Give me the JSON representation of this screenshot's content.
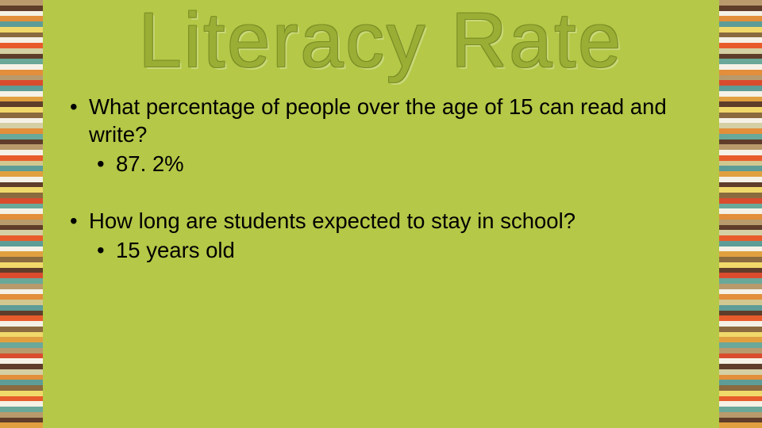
{
  "title": "Literacy Rate",
  "question1": "What percentage of people over the age of 15 can read and write?",
  "answer1": "87. 2%",
  "question2": "How long are students expected to stay in school?",
  "answer2": "15 years old",
  "colors": {
    "panel_bg": "#b5c847",
    "title_fill": "#9aae35",
    "title_outline": "#7a8d25",
    "title_highlight": "#c9d878",
    "body_text": "#000000"
  },
  "typography": {
    "title_fontsize_pt": 73,
    "body_fontsize_pt": 21,
    "font_family": "Arial"
  },
  "stripes": [
    "#b89a6c",
    "#5f3d2a",
    "#f5f1e6",
    "#e28e3a",
    "#5d9c97",
    "#f0d96a",
    "#8a6a3e",
    "#f5f1e6",
    "#e85c2b",
    "#d5cfa4",
    "#5f3d2a",
    "#6aa89a",
    "#f5f1e6",
    "#e28e3a",
    "#b89a6c",
    "#d94c2e",
    "#5d9c97",
    "#f5f1e6",
    "#e0a040",
    "#5f3d2a",
    "#f0d96a",
    "#8a6a3e",
    "#f5f1e6",
    "#d5cfa4",
    "#e28e3a",
    "#6aa89a",
    "#5f3d2a",
    "#b89a6c",
    "#f5f1e6",
    "#e85c2b",
    "#d0c890",
    "#5d9c97",
    "#e0a040",
    "#f5f1e6",
    "#5f3d2a",
    "#f0d96a",
    "#8a6a3e",
    "#d94c2e",
    "#6aa89a",
    "#f5f1e6",
    "#e28e3a",
    "#b89a6c",
    "#5f3d2a",
    "#d5cfa4",
    "#e85c2b",
    "#5d9c97",
    "#f5f1e6",
    "#e0a040",
    "#8a6a3e",
    "#f0d96a",
    "#5f3d2a",
    "#d94c2e",
    "#6aa89a",
    "#b89a6c",
    "#f5f1e6",
    "#e28e3a",
    "#d0c890",
    "#5d9c97",
    "#5f3d2a",
    "#e85c2b",
    "#f5f1e6",
    "#8a6a3e",
    "#f0d96a",
    "#e0a040",
    "#6aa89a",
    "#b89a6c",
    "#d94c2e",
    "#f5f1e6",
    "#5f3d2a",
    "#d5cfa4",
    "#e28e3a",
    "#5d9c97",
    "#8a6a3e",
    "#f0d96a",
    "#e85c2b",
    "#f5f1e6",
    "#6aa89a",
    "#b89a6c",
    "#5f3d2a",
    "#e0a040"
  ]
}
